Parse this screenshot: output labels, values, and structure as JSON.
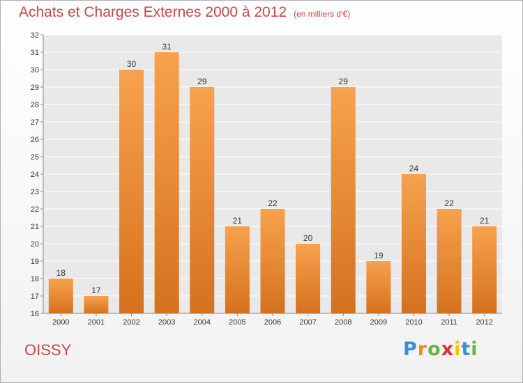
{
  "chart_data": {
    "type": "bar",
    "title": "Achats et Charges Externes 2000 à 2012",
    "unit": "(en milliers d'€)",
    "categories": [
      "2000",
      "2001",
      "2002",
      "2003",
      "2004",
      "2005",
      "2006",
      "2007",
      "2008",
      "2009",
      "2010",
      "2011",
      "2012"
    ],
    "values": [
      18,
      17,
      30,
      31,
      29,
      21,
      22,
      20,
      29,
      19,
      24,
      22,
      21
    ],
    "ylim": [
      16,
      32
    ],
    "yticks": [
      16,
      17,
      18,
      19,
      20,
      21,
      22,
      23,
      24,
      25,
      26,
      27,
      28,
      29,
      30,
      31,
      32
    ],
    "xlabel": "",
    "ylabel": "",
    "grid": true,
    "bar_color": "#f0923a"
  },
  "location": "OISSY",
  "brand": {
    "letters": [
      "P",
      "r",
      "o",
      "x",
      "i",
      "t",
      "i"
    ],
    "colors": [
      "#3b8fd6",
      "#f08a24",
      "#6ab04c",
      "#e0312f",
      "#f5c400",
      "#3b8fd6",
      "#6ab04c"
    ]
  }
}
